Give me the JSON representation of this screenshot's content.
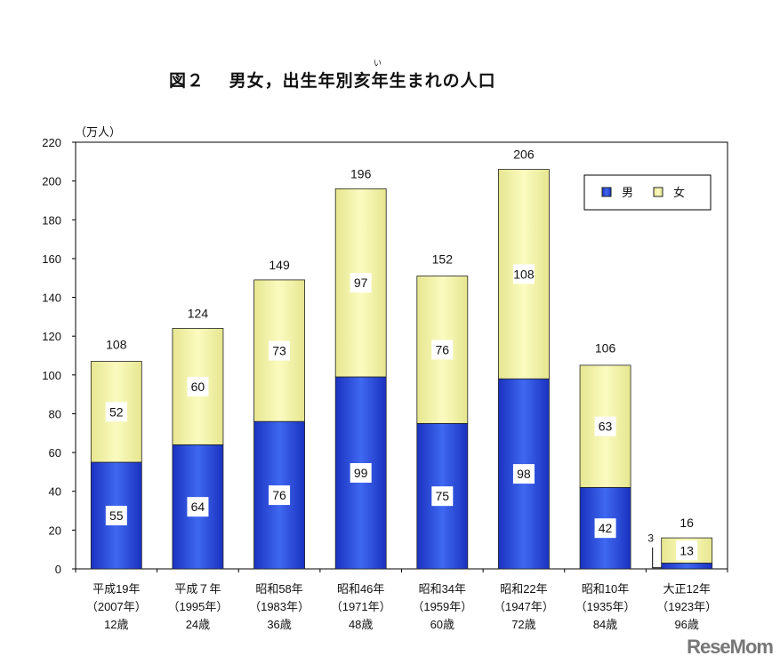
{
  "title": "図２　 男女，出生年別亥年生まれの人口",
  "title_ruby": "い",
  "watermark": "ReseMom",
  "chart_data": {
    "type": "bar",
    "stacked": true,
    "title": "図２　 男女，出生年別亥年生まれの人口",
    "ylabel": "（万人）",
    "ylim": [
      0,
      220
    ],
    "yticks": [
      0,
      20,
      40,
      60,
      80,
      100,
      120,
      140,
      160,
      180,
      200,
      220
    ],
    "grid": false,
    "legend_position": "top-right",
    "categories": [
      [
        "平成19年",
        "（2007年）",
        "12歳"
      ],
      [
        "平成７年",
        "（1995年）",
        "24歳"
      ],
      [
        "昭和58年",
        "（1983年）",
        "36歳"
      ],
      [
        "昭和46年",
        "（1971年）",
        "48歳"
      ],
      [
        "昭和34年",
        "（1959年）",
        "60歳"
      ],
      [
        "昭和22年",
        "（1947年）",
        "72歳"
      ],
      [
        "昭和10年",
        "（1935年）",
        "84歳"
      ],
      [
        "大正12年",
        "（1923年）",
        "96歳"
      ]
    ],
    "series": [
      {
        "name": "男",
        "color": "#1e3ed8",
        "values": [
          55,
          64,
          76,
          99,
          75,
          98,
          42,
          3
        ]
      },
      {
        "name": "女",
        "color": "#f2f2a0",
        "values": [
          52,
          60,
          73,
          97,
          76,
          108,
          63,
          13
        ]
      }
    ],
    "totals": [
      108,
      124,
      149,
      196,
      152,
      206,
      106,
      16
    ]
  }
}
